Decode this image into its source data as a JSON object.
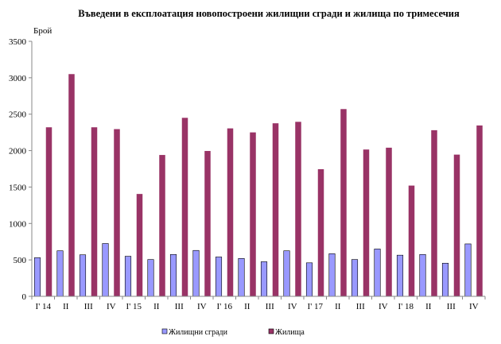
{
  "chart_data": {
    "type": "bar",
    "title": "Въведени в експлоатация новопостроени жилищни сгради и жилища по тримесечия",
    "ylabel": "Брой",
    "xlabel": "",
    "ylim": [
      0,
      3500
    ],
    "yticks": [
      0,
      500,
      1000,
      1500,
      2000,
      2500,
      3000,
      3500
    ],
    "grid": false,
    "legend": "bottom",
    "categories": [
      "I' 14",
      "II",
      "III",
      "IV",
      "I' 15",
      "II",
      "III",
      "IV",
      "I' 16",
      "II",
      "III",
      "IV",
      "I' 17",
      "II",
      "III",
      "IV",
      "I' 18",
      "II",
      "III",
      "IV"
    ],
    "series": [
      {
        "name": "Жилищни сгради",
        "color": "#9999FF",
        "values": [
          530,
          625,
          570,
          725,
          550,
          505,
          575,
          630,
          540,
          520,
          475,
          625,
          460,
          585,
          505,
          650,
          565,
          575,
          455,
          720
        ]
      },
      {
        "name": "Жилища",
        "color": "#993366",
        "values": [
          2320,
          3050,
          2320,
          2295,
          1405,
          1940,
          2450,
          1995,
          2305,
          2250,
          2375,
          2395,
          1745,
          2570,
          2015,
          2040,
          1520,
          2280,
          1945,
          2345
        ]
      }
    ]
  }
}
